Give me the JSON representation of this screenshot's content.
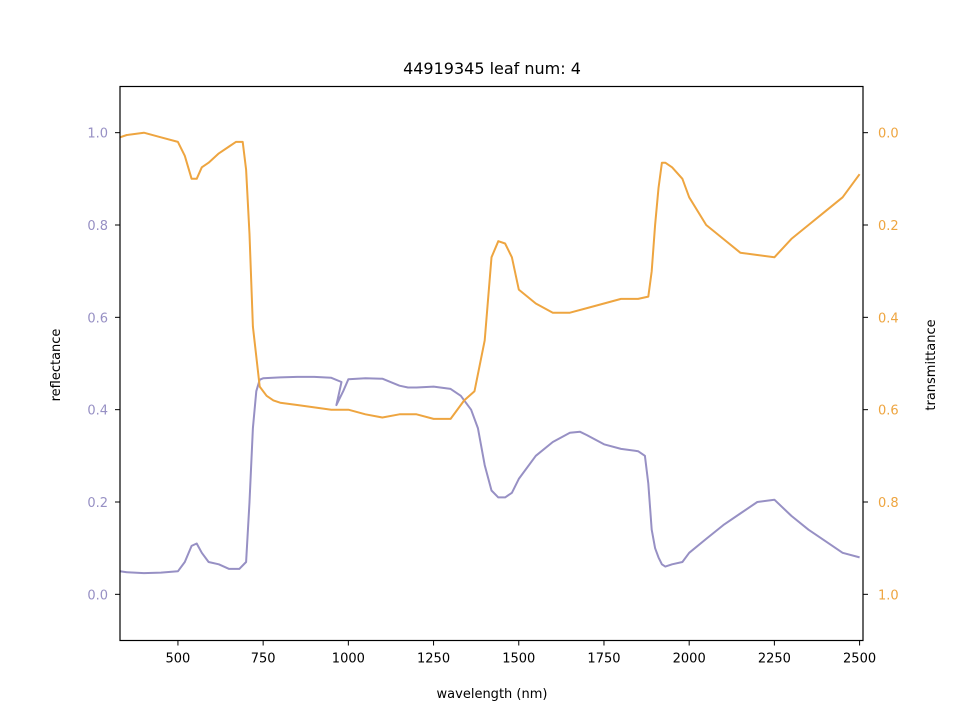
{
  "chart_data": {
    "type": "line",
    "title": "44919345 leaf num: 4",
    "xlabel": "wavelength (nm)",
    "ylabel_left": "reflectance",
    "ylabel_right": "transmittance",
    "xlim": [
      330,
      2510
    ],
    "ylim_left": [
      -0.1,
      1.1
    ],
    "ylim_right": [
      1.1,
      -0.1
    ],
    "right_axis_inverted": true,
    "grid": false,
    "xticks": [
      500,
      750,
      1000,
      1250,
      1500,
      1750,
      2000,
      2250,
      2500
    ],
    "yticks_left": [
      0.0,
      0.2,
      0.4,
      0.6,
      0.8,
      1.0
    ],
    "yticks_right": [
      0.0,
      0.2,
      0.4,
      0.6,
      0.8,
      1.0
    ],
    "colors": {
      "reflectance": "#9790c4",
      "transmittance": "#eea540"
    },
    "series": [
      {
        "name": "reflectance",
        "axis": "left",
        "x": [
          330,
          350,
          400,
          450,
          500,
          520,
          540,
          555,
          570,
          590,
          620,
          650,
          680,
          700,
          710,
          720,
          730,
          740,
          750,
          800,
          850,
          900,
          950,
          980,
          965,
          985,
          1000,
          1050,
          1100,
          1150,
          1175,
          1200,
          1250,
          1300,
          1330,
          1360,
          1380,
          1400,
          1420,
          1440,
          1460,
          1480,
          1500,
          1550,
          1600,
          1650,
          1680,
          1700,
          1750,
          1800,
          1850,
          1870,
          1880,
          1890,
          1900,
          1910,
          1920,
          1930,
          1950,
          1980,
          2000,
          2050,
          2100,
          2150,
          2200,
          2250,
          2300,
          2350,
          2400,
          2450,
          2500
        ],
        "y": [
          0.05,
          0.048,
          0.046,
          0.047,
          0.05,
          0.07,
          0.105,
          0.11,
          0.09,
          0.07,
          0.065,
          0.055,
          0.055,
          0.07,
          0.2,
          0.36,
          0.44,
          0.465,
          0.468,
          0.47,
          0.471,
          0.471,
          0.469,
          0.46,
          0.41,
          0.44,
          0.466,
          0.468,
          0.467,
          0.452,
          0.448,
          0.448,
          0.45,
          0.445,
          0.43,
          0.4,
          0.36,
          0.28,
          0.225,
          0.21,
          0.21,
          0.22,
          0.25,
          0.3,
          0.33,
          0.35,
          0.352,
          0.345,
          0.325,
          0.315,
          0.31,
          0.3,
          0.24,
          0.14,
          0.1,
          0.08,
          0.065,
          0.06,
          0.065,
          0.07,
          0.09,
          0.12,
          0.15,
          0.175,
          0.2,
          0.205,
          0.17,
          0.14,
          0.115,
          0.09,
          0.08
        ]
      },
      {
        "name": "transmittance",
        "axis": "right",
        "x": [
          330,
          350,
          400,
          450,
          500,
          520,
          540,
          555,
          570,
          590,
          620,
          650,
          670,
          690,
          700,
          710,
          720,
          740,
          760,
          780,
          800,
          850,
          900,
          950,
          980,
          1000,
          1050,
          1100,
          1150,
          1200,
          1250,
          1300,
          1340,
          1370,
          1400,
          1420,
          1440,
          1460,
          1480,
          1500,
          1550,
          1600,
          1650,
          1700,
          1750,
          1800,
          1850,
          1880,
          1890,
          1900,
          1910,
          1920,
          1930,
          1950,
          1980,
          2000,
          2050,
          2100,
          2150,
          2200,
          2250,
          2300,
          2350,
          2400,
          2450,
          2500
        ],
        "y": [
          0.01,
          0.005,
          0.0,
          0.01,
          0.02,
          0.05,
          0.1,
          0.1,
          0.075,
          0.065,
          0.045,
          0.03,
          0.02,
          0.02,
          0.08,
          0.22,
          0.42,
          0.55,
          0.57,
          0.58,
          0.585,
          0.59,
          0.595,
          0.6,
          0.6,
          0.6,
          0.61,
          0.617,
          0.61,
          0.61,
          0.62,
          0.62,
          0.58,
          0.56,
          0.45,
          0.27,
          0.235,
          0.24,
          0.27,
          0.34,
          0.37,
          0.39,
          0.39,
          0.38,
          0.37,
          0.36,
          0.36,
          0.355,
          0.3,
          0.2,
          0.12,
          0.065,
          0.065,
          0.075,
          0.1,
          0.14,
          0.2,
          0.23,
          0.26,
          0.265,
          0.27,
          0.23,
          0.2,
          0.17,
          0.14,
          0.09
        ]
      }
    ]
  }
}
